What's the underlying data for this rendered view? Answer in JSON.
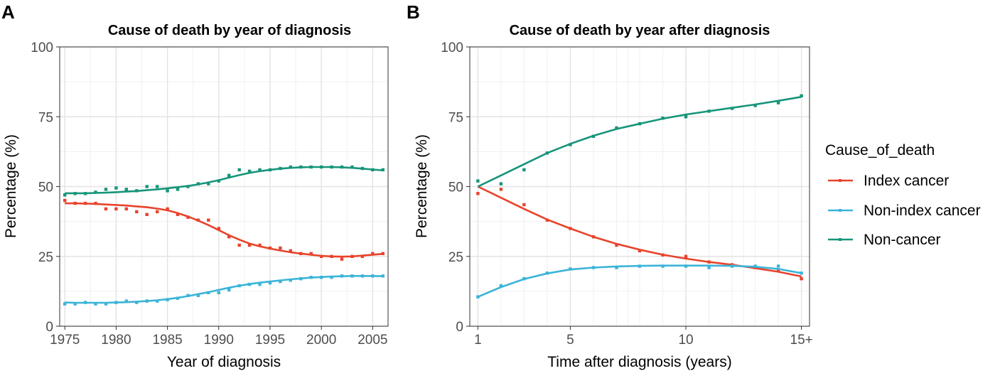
{
  "chart_data": [
    {
      "panel": "A",
      "type": "scatter",
      "title": "Cause of death by year of diagnosis",
      "xlabel": "Year of diagnosis",
      "ylabel": "Percentage (%)",
      "xlim": [
        1974.5,
        2006.5
      ],
      "ylim": [
        0,
        100
      ],
      "x_ticks": [
        1975,
        1980,
        1985,
        1990,
        1995,
        2000,
        2005
      ],
      "x_tick_labels": [
        "1975",
        "1980",
        "1985",
        "1990",
        "1995",
        "2000",
        "2005"
      ],
      "y_ticks": [
        0,
        25,
        50,
        75,
        100
      ],
      "y_tick_labels": [
        "0",
        "25",
        "50",
        "75",
        "100"
      ],
      "grid": true,
      "x": [
        1975,
        1976,
        1977,
        1978,
        1979,
        1980,
        1981,
        1982,
        1983,
        1984,
        1985,
        1986,
        1987,
        1988,
        1989,
        1990,
        1991,
        1992,
        1993,
        1994,
        1995,
        1996,
        1997,
        1998,
        1999,
        2000,
        2001,
        2002,
        2003,
        2004,
        2005,
        2006
      ],
      "series": [
        {
          "name": "Index cancer",
          "color": "#e8432b",
          "points": [
            45,
            44,
            44,
            44,
            42,
            42,
            42,
            41,
            40,
            41,
            42,
            40,
            39,
            38,
            38,
            35,
            32,
            29,
            29,
            29,
            28,
            28,
            27,
            26,
            26,
            25,
            25,
            24,
            25,
            25,
            26,
            26
          ],
          "smooth": [
            44,
            44,
            43.9,
            43.8,
            43.6,
            43.4,
            43.2,
            42.9,
            42.6,
            42.1,
            41.5,
            40.5,
            39.3,
            37.8,
            36.2,
            34.4,
            32.6,
            31,
            29.6,
            28.6,
            27.8,
            27.1,
            26.5,
            26,
            25.6,
            25.2,
            25,
            24.9,
            25,
            25.3,
            25.6,
            25.9
          ]
        },
        {
          "name": "Non-index cancer",
          "color": "#3bb4d8",
          "points": [
            8,
            8,
            8.5,
            8,
            8,
            8.5,
            9,
            8.5,
            9,
            9,
            9.5,
            10,
            11,
            11,
            12,
            12,
            13,
            14.5,
            15,
            15,
            15.5,
            16,
            16.5,
            17,
            17.5,
            17.5,
            17.5,
            18,
            18,
            18,
            18,
            18
          ],
          "smooth": [
            8.5,
            8.4,
            8.4,
            8.4,
            8.4,
            8.5,
            8.6,
            8.8,
            9,
            9.3,
            9.7,
            10.2,
            10.8,
            11.5,
            12.2,
            13,
            13.8,
            14.5,
            15.1,
            15.6,
            16,
            16.4,
            16.8,
            17.1,
            17.4,
            17.6,
            17.8,
            17.9,
            18,
            18,
            18,
            17.9
          ]
        },
        {
          "name": "Non-cancer",
          "color": "#16957a",
          "points": [
            47,
            47.5,
            47.5,
            48,
            49,
            49.5,
            49,
            48.5,
            50,
            50,
            48.5,
            49,
            50,
            51,
            51,
            52,
            54,
            56,
            55.5,
            56,
            56,
            56.5,
            57,
            57,
            57,
            57,
            57,
            57,
            57,
            56.5,
            56,
            56
          ],
          "smooth": [
            47.6,
            47.6,
            47.6,
            47.7,
            47.8,
            48,
            48.2,
            48.4,
            48.7,
            49,
            49.4,
            49.8,
            50.2,
            50.8,
            51.5,
            52.3,
            53.2,
            54.1,
            54.9,
            55.5,
            56,
            56.4,
            56.7,
            56.9,
            57,
            57,
            57,
            56.9,
            56.7,
            56.4,
            56.1,
            55.8
          ]
        }
      ]
    },
    {
      "panel": "B",
      "type": "scatter",
      "title": "Cause of death by year after diagnosis",
      "xlabel": "Time after diagnosis (years)",
      "ylabel": "Percentage (%)",
      "xlim": [
        0.65,
        15.35
      ],
      "ylim": [
        0,
        100
      ],
      "x_ticks": [
        1,
        5,
        10,
        15
      ],
      "x_tick_labels": [
        "1",
        "5",
        "10",
        "15+"
      ],
      "y_ticks": [
        0,
        25,
        50,
        75,
        100
      ],
      "y_tick_labels": [
        "0",
        "25",
        "50",
        "75",
        "100"
      ],
      "grid": true,
      "x": [
        1,
        2,
        3,
        4,
        5,
        6,
        7,
        8,
        9,
        10,
        11,
        12,
        13,
        14,
        15
      ],
      "series": [
        {
          "name": "Index cancer",
          "color": "#e8432b",
          "points": [
            47.5,
            49,
            43.5,
            38,
            35,
            32,
            29,
            27,
            25.5,
            25,
            23,
            22,
            21,
            20,
            17
          ],
          "smooth": [
            50,
            46,
            42,
            38.2,
            35,
            32,
            29.5,
            27.4,
            25.6,
            24.2,
            23,
            22,
            20.8,
            19.5,
            17.8
          ]
        },
        {
          "name": "Non-index cancer",
          "color": "#3bb4d8",
          "points": [
            10.5,
            14.5,
            17,
            19,
            20.5,
            21,
            21,
            21.5,
            21.5,
            21.5,
            21,
            21.5,
            21.5,
            21.5,
            19
          ],
          "smooth": [
            10.5,
            14,
            16.9,
            18.9,
            20.3,
            21,
            21.4,
            21.6,
            21.7,
            21.7,
            21.7,
            21.6,
            21.3,
            20.5,
            19
          ]
        },
        {
          "name": "Non-cancer",
          "color": "#16957a",
          "points": [
            52,
            51,
            56,
            62,
            65,
            68,
            71,
            72.5,
            74.5,
            75,
            77,
            78,
            79,
            80,
            82.5
          ],
          "smooth": [
            50,
            54,
            58,
            62,
            65.3,
            68.2,
            70.6,
            72.5,
            74.3,
            75.8,
            77,
            78.2,
            79.4,
            80.7,
            82.1
          ]
        }
      ]
    }
  ],
  "legend": {
    "title": "Cause_of_death",
    "items": [
      {
        "label": "Index cancer",
        "color": "#e8432b"
      },
      {
        "label": "Non-index cancer",
        "color": "#3bb4d8"
      },
      {
        "label": "Non-cancer",
        "color": "#16957a"
      }
    ]
  }
}
